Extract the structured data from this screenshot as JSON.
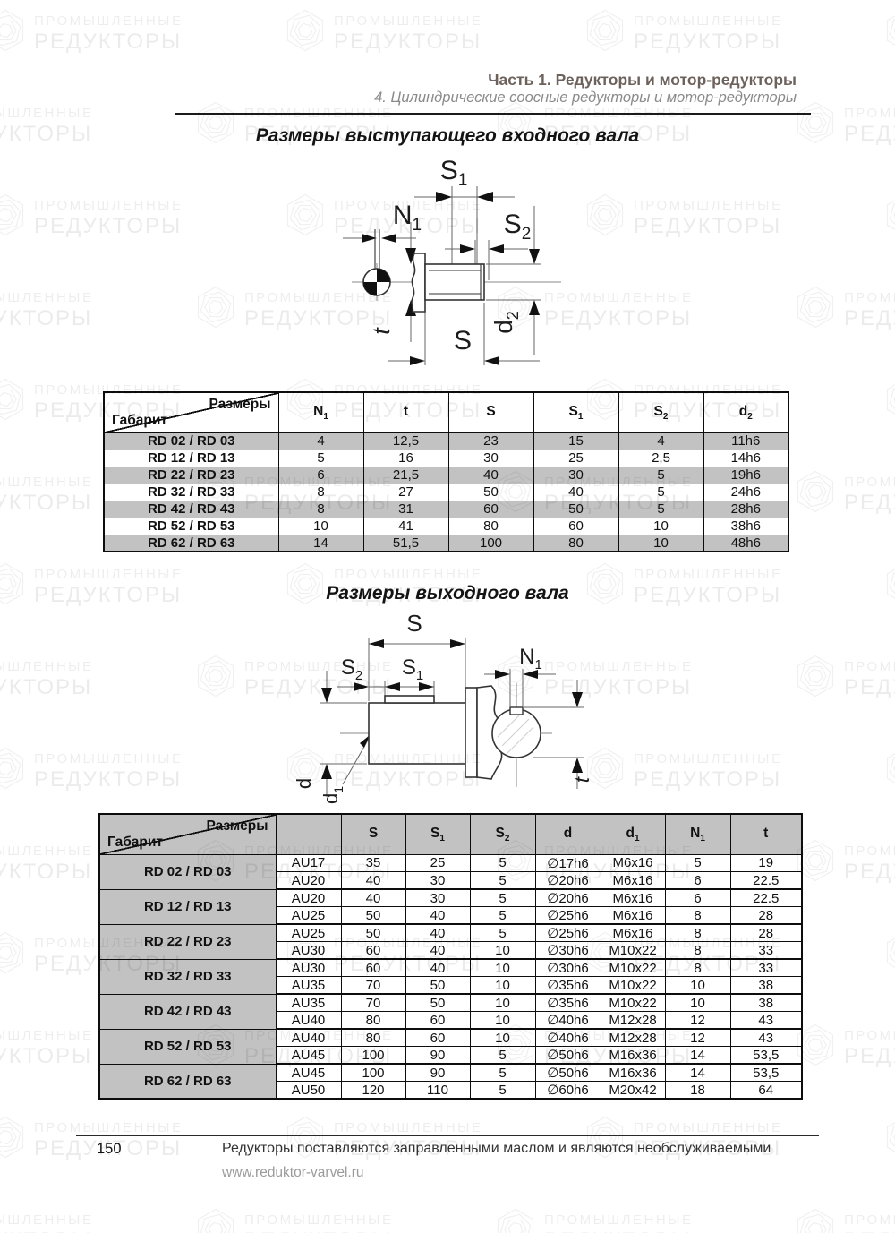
{
  "header": {
    "part_title": "Часть 1. Редукторы и мотор-редукторы",
    "chapter_subtitle": "4. Цилиндрические соосные редукторы и мотор-редукторы"
  },
  "section_input": {
    "title": "Размеры выступающего входного вала"
  },
  "section_output": {
    "title": "Размеры выходного вала"
  },
  "watermark": {
    "line1": "ПРОМЫШЛЕННЫЕ",
    "line2": "РЕДУКТОРЫ"
  },
  "colors": {
    "row_shading": "#c2c2c2",
    "header_title": "#6d615c",
    "table_border": "#0d0d0d"
  },
  "dia1": {
    "s1": {
      "b": "S",
      "s": "1"
    },
    "n1": {
      "b": "N",
      "s": "1"
    },
    "s2": {
      "b": "S",
      "s": "2"
    },
    "t": {
      "b": "t"
    },
    "s": {
      "b": "S"
    },
    "d2": {
      "b": "d",
      "s": "2"
    }
  },
  "dia2": {
    "s": {
      "b": "S"
    },
    "s2": {
      "b": "S",
      "s": "2"
    },
    "s1": {
      "b": "S",
      "s": "1"
    },
    "n1": {
      "b": "N",
      "s": "1"
    },
    "d": {
      "b": "d"
    },
    "d1": {
      "b": "d",
      "s": "1"
    },
    "t": {
      "b": "t"
    }
  },
  "input_shaft_table": {
    "corner": {
      "top": "Размеры",
      "bottom": "Габарит"
    },
    "columns": [
      {
        "b": "N",
        "s": "1"
      },
      {
        "b": "t"
      },
      {
        "b": "S"
      },
      {
        "b": "S",
        "s": "1"
      },
      {
        "b": "S",
        "s": "2"
      },
      {
        "b": "d",
        "s": "2"
      }
    ],
    "rows": [
      {
        "label": "RD 02 / RD 03",
        "shaded": true,
        "values": [
          "4",
          "12,5",
          "23",
          "15",
          "4",
          "11h6"
        ]
      },
      {
        "label": "RD 12 / RD 13",
        "shaded": false,
        "values": [
          "5",
          "16",
          "30",
          "25",
          "2,5",
          "14h6"
        ]
      },
      {
        "label": "RD 22 / RD 23",
        "shaded": true,
        "values": [
          "6",
          "21,5",
          "40",
          "30",
          "5",
          "19h6"
        ]
      },
      {
        "label": "RD 32 / RD 33",
        "shaded": false,
        "values": [
          "8",
          "27",
          "50",
          "40",
          "5",
          "24h6"
        ]
      },
      {
        "label": "RD 42 / RD 43",
        "shaded": true,
        "values": [
          "8",
          "31",
          "60",
          "50",
          "5",
          "28h6"
        ]
      },
      {
        "label": "RD 52 / RD 53",
        "shaded": false,
        "values": [
          "10",
          "41",
          "80",
          "60",
          "10",
          "38h6"
        ]
      },
      {
        "label": "RD 62 / RD 63",
        "shaded": true,
        "values": [
          "14",
          "51,5",
          "100",
          "80",
          "10",
          "48h6"
        ]
      }
    ]
  },
  "output_shaft_table": {
    "corner": {
      "top": "Размеры",
      "bottom": "Габарит"
    },
    "columns": [
      {
        "b": ""
      },
      {
        "b": "S"
      },
      {
        "b": "S",
        "s": "1"
      },
      {
        "b": "S",
        "s": "2"
      },
      {
        "b": "d"
      },
      {
        "b": "d",
        "s": "1"
      },
      {
        "b": "N",
        "s": "1"
      },
      {
        "b": "t"
      }
    ],
    "groups": [
      {
        "label": "RD 02 / RD 03",
        "rows": [
          [
            "AU17",
            "35",
            "25",
            "5",
            "∅17h6",
            "M6x16",
            "5",
            "19"
          ],
          [
            "AU20",
            "40",
            "30",
            "5",
            "∅20h6",
            "M6x16",
            "6",
            "22.5"
          ]
        ]
      },
      {
        "label": "RD 12 / RD 13",
        "rows": [
          [
            "AU20",
            "40",
            "30",
            "5",
            "∅20h6",
            "M6x16",
            "6",
            "22.5"
          ],
          [
            "AU25",
            "50",
            "40",
            "5",
            "∅25h6",
            "M6x16",
            "8",
            "28"
          ]
        ]
      },
      {
        "label": "RD 22 / RD 23",
        "rows": [
          [
            "AU25",
            "50",
            "40",
            "5",
            "∅25h6",
            "M6x16",
            "8",
            "28"
          ],
          [
            "AU30",
            "60",
            "40",
            "10",
            "∅30h6",
            "M10x22",
            "8",
            "33"
          ]
        ]
      },
      {
        "label": "RD 32 / RD 33",
        "rows": [
          [
            "AU30",
            "60",
            "40",
            "10",
            "∅30h6",
            "M10x22",
            "8",
            "33"
          ],
          [
            "AU35",
            "70",
            "50",
            "10",
            "∅35h6",
            "M10x22",
            "10",
            "38"
          ]
        ]
      },
      {
        "label": "RD 42 / RD 43",
        "rows": [
          [
            "AU35",
            "70",
            "50",
            "10",
            "∅35h6",
            "M10x22",
            "10",
            "38"
          ],
          [
            "AU40",
            "80",
            "60",
            "10",
            "∅40h6",
            "M12x28",
            "12",
            "43"
          ]
        ]
      },
      {
        "label": "RD 52 / RD 53",
        "rows": [
          [
            "AU40",
            "80",
            "60",
            "10",
            "∅40h6",
            "M12x28",
            "12",
            "43"
          ],
          [
            "AU45",
            "100",
            "90",
            "5",
            "∅50h6",
            "M16x36",
            "14",
            "53,5"
          ]
        ]
      },
      {
        "label": "RD 62 / RD 63",
        "rows": [
          [
            "AU45",
            "100",
            "90",
            "5",
            "∅50h6",
            "M16x36",
            "14",
            "53,5"
          ],
          [
            "AU50",
            "120",
            "110",
            "5",
            "∅60h6",
            "M20x42",
            "18",
            "64"
          ]
        ]
      }
    ]
  },
  "footer": {
    "page_number": "150",
    "note": "Редукторы поставляются заправленными маслом и являются необслуживаемыми",
    "website": "www.reduktor-varvel.ru"
  }
}
